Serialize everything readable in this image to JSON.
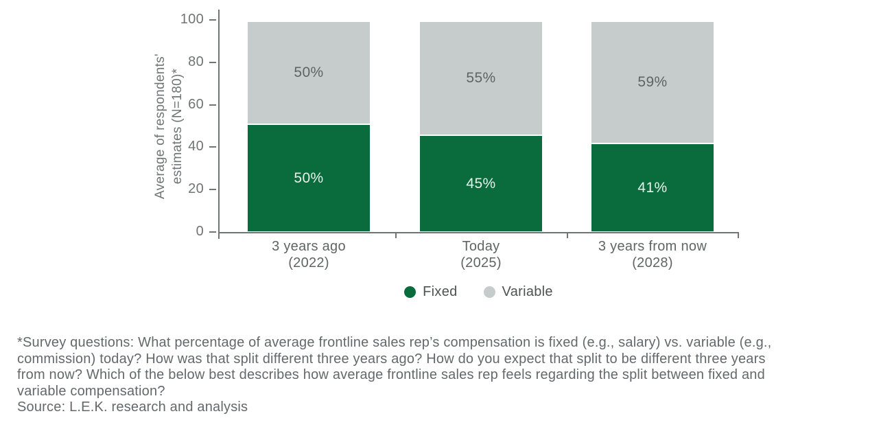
{
  "chart_data": {
    "type": "bar",
    "stacked": true,
    "categories": [
      {
        "label": "3 years ago",
        "sublabel": "(2022)"
      },
      {
        "label": "Today",
        "sublabel": "(2025)"
      },
      {
        "label": "3 years from now",
        "sublabel": "(2028)"
      }
    ],
    "series": [
      {
        "name": "Fixed",
        "color": "#0A6B3C",
        "label_text_color": "#E8F2EC",
        "values": [
          50,
          45,
          41
        ]
      },
      {
        "name": "Variable",
        "color": "#C5CCCB",
        "label_text_color": "#5D6463",
        "values": [
          50,
          55,
          59
        ]
      }
    ],
    "value_suffix": "%",
    "ylabel_lines": [
      "Average of respondents'",
      "estimates (N=180)*"
    ],
    "ylim": [
      0,
      100
    ],
    "yticks": [
      0,
      20,
      40,
      60,
      80,
      100
    ],
    "grid": false,
    "legend_position": "bottom"
  },
  "footnote": {
    "lines": [
      "*Survey questions: What percentage of average frontline sales rep’s compensation is fixed (e.g., salary) vs. variable (e.g.,",
      "commission) today? How was that split different three years ago? How do you expect that split to be different three years",
      "from now? Which of the below best describes how average frontline sales rep feels regarding the split between fixed and",
      "variable compensation?"
    ],
    "source": "Source: L.E.K. research and analysis"
  },
  "colors": {
    "background": "#FFFFFF",
    "axis": "#6E7574",
    "tick_label": "#6E7574",
    "category_label": "#5F6564",
    "legend_label": "#4D5352",
    "footnote_text": "#63696B"
  }
}
